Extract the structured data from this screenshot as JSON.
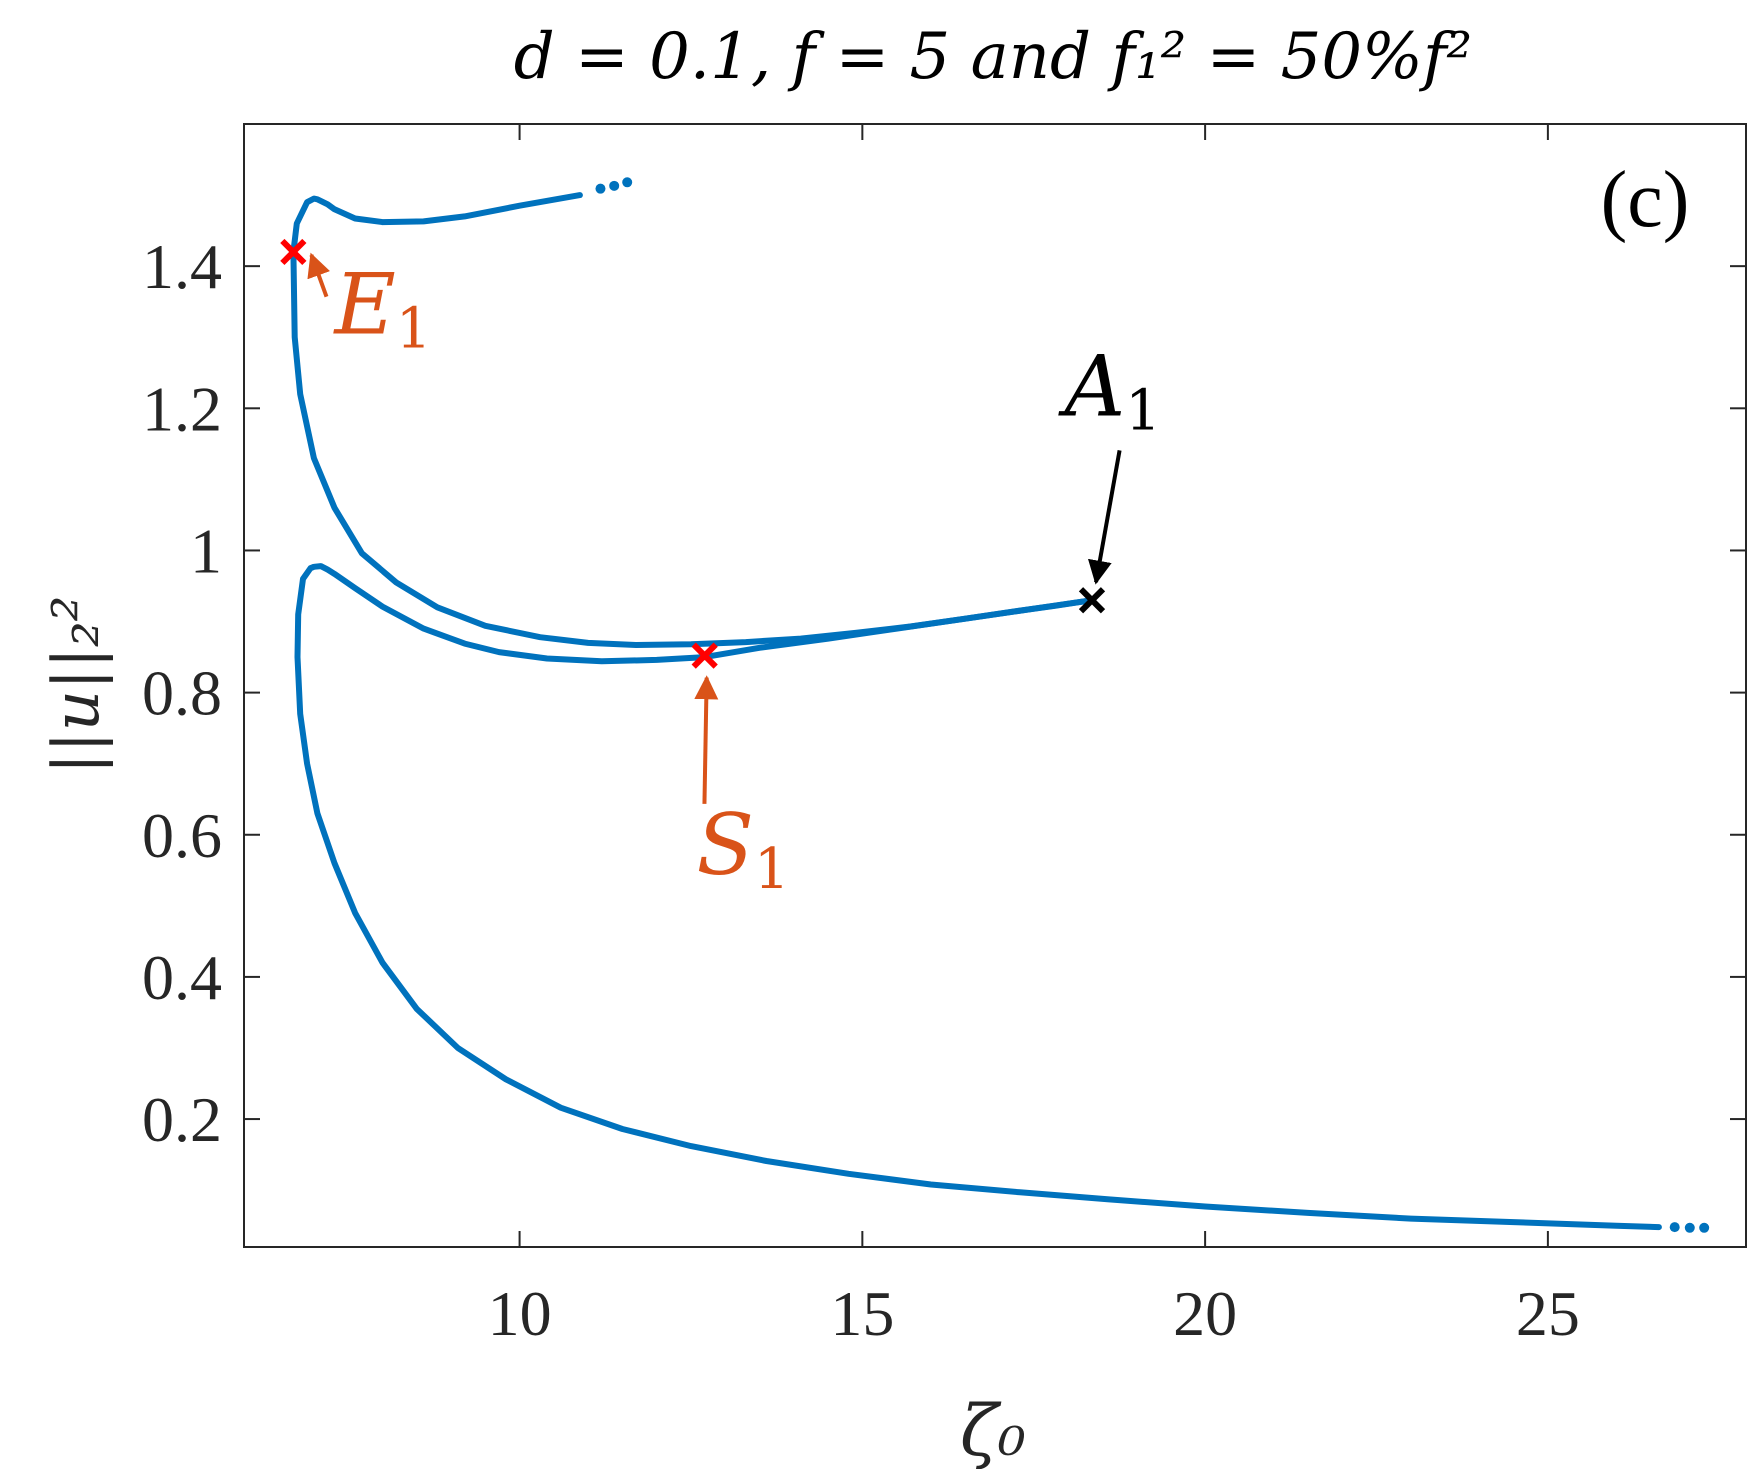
{
  "chart_data": {
    "type": "line",
    "title": "d = 0.1, f = 5 and f₁² = 50%f²",
    "panel_label": "(c)",
    "xlabel": "ζ₀",
    "ylabel": "||u||₂²",
    "xlim": [
      5.98,
      27.89
    ],
    "ylim": [
      0.02,
      1.6
    ],
    "x_ticks": [
      10,
      15,
      20,
      25
    ],
    "x_tick_labels": [
      "10",
      "15",
      "20",
      "25"
    ],
    "y_ticks": [
      0.2,
      0.4,
      0.6,
      0.8,
      1.0,
      1.2,
      1.4
    ],
    "y_tick_labels": [
      "0.2",
      "0.4",
      "0.6",
      "0.8",
      "1",
      "1.2",
      "1.4"
    ],
    "grid": false,
    "series_color": "#0072BD",
    "series": [
      {
        "x": [
          10.88,
          10.0,
          9.2,
          8.6,
          8.0,
          7.6,
          7.3,
          7.2,
          7.05,
          7.0,
          6.9,
          6.75,
          6.7,
          6.72,
          6.8,
          7.0,
          7.3,
          7.7,
          8.2,
          8.8,
          9.5,
          10.3,
          11.0,
          11.7,
          12.5,
          13.3,
          14.1,
          14.9,
          15.7,
          16.5,
          17.2,
          17.8,
          18.35
        ],
        "y": [
          1.5,
          1.485,
          1.47,
          1.463,
          1.462,
          1.467,
          1.48,
          1.487,
          1.494,
          1.495,
          1.49,
          1.46,
          1.42,
          1.3,
          1.22,
          1.13,
          1.06,
          0.996,
          0.955,
          0.92,
          0.894,
          0.878,
          0.87,
          0.867,
          0.868,
          0.871,
          0.876,
          0.884,
          0.893,
          0.904,
          0.914,
          0.922,
          0.93
        ]
      },
      {
        "x": [
          18.35,
          17.5,
          16.5,
          15.5,
          14.5,
          13.5,
          12.7,
          12.0,
          11.2,
          10.4,
          9.7,
          9.2,
          8.6,
          8.0,
          7.6,
          7.3,
          7.2,
          7.1,
          7.0,
          6.95,
          6.84,
          6.77,
          6.76,
          6.8,
          6.9,
          7.05,
          7.3,
          7.6,
          8.0,
          8.5,
          9.1,
          9.8,
          10.6,
          11.5,
          12.5,
          13.6,
          14.8,
          16.0,
          17.3,
          18.6,
          20.0,
          21.5,
          23.0,
          24.5,
          26.0,
          26.62
        ],
        "y": [
          0.93,
          0.918,
          0.904,
          0.89,
          0.876,
          0.863,
          0.85,
          0.846,
          0.844,
          0.848,
          0.857,
          0.869,
          0.89,
          0.921,
          0.947,
          0.967,
          0.973,
          0.978,
          0.977,
          0.975,
          0.96,
          0.91,
          0.85,
          0.77,
          0.7,
          0.63,
          0.56,
          0.49,
          0.42,
          0.355,
          0.3,
          0.256,
          0.216,
          0.186,
          0.162,
          0.141,
          0.123,
          0.108,
          0.097,
          0.087,
          0.077,
          0.068,
          0.06,
          0.055,
          0.05,
          0.048
        ]
      }
    ],
    "continuation_dots": [
      {
        "x": [
          11.18,
          11.38,
          11.57
        ],
        "y": [
          1.509,
          1.513,
          1.518
        ]
      },
      {
        "x": [
          26.85,
          27.07,
          27.28
        ],
        "y": [
          0.048,
          0.047,
          0.047
        ]
      }
    ],
    "markers": [
      {
        "label": "E",
        "subscript": "1",
        "x": 6.7,
        "y": 1.42,
        "marker_color": "#FF0000",
        "label_color": "#D95319",
        "label_x": 7.3,
        "label_y": 1.305
      },
      {
        "label": "S",
        "subscript": "1",
        "x": 12.7,
        "y": 0.852,
        "marker_color": "#FF0000",
        "label_color": "#D95319",
        "label_x": 12.58,
        "label_y": 0.545
      },
      {
        "label": "A",
        "subscript": "1",
        "x": 18.35,
        "y": 0.93,
        "marker_color": "#000000",
        "label_color": "#000000",
        "label_x": 17.95,
        "label_y": 1.19
      }
    ]
  }
}
